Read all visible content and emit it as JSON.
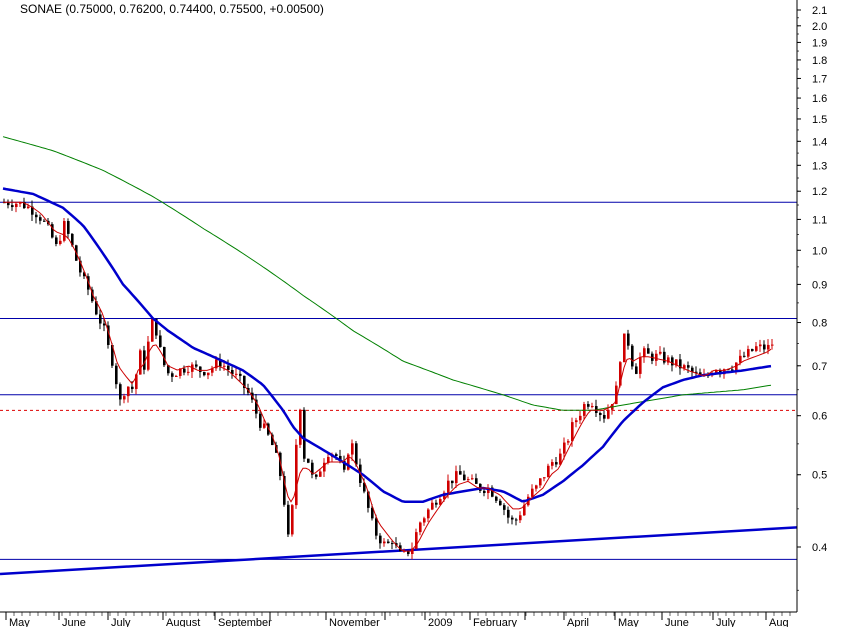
{
  "chart_data": {
    "type": "candlestick",
    "title": "SONAE (0.75000, 0.76200, 0.74400, 0.75500, +0.00500)",
    "y_scale": "log",
    "ylim": [
      0.34,
      2.15
    ],
    "y_ticks": [
      2.1,
      2.0,
      1.9,
      1.8,
      1.7,
      1.6,
      1.5,
      1.4,
      1.3,
      1.2,
      1.1,
      1.0,
      0.9,
      0.8,
      0.7,
      0.6,
      0.5,
      0.4
    ],
    "x_labels": [
      "May",
      "June",
      "July",
      "August",
      "September",
      "",
      "November",
      "",
      "2009",
      "February",
      "",
      "April",
      "May",
      "June",
      "July",
      "Aug"
    ],
    "price": {
      "t": [
        0,
        10,
        20,
        30,
        38,
        45,
        52,
        60,
        65,
        72,
        78,
        85,
        90,
        100,
        105,
        110,
        115,
        122,
        130,
        135,
        140,
        148,
        152,
        158,
        165,
        175,
        185,
        195,
        205,
        215,
        225,
        235,
        245,
        255,
        262,
        270,
        276,
        280,
        284,
        288,
        292,
        296,
        300,
        305,
        310,
        318,
        325,
        332,
        340,
        346,
        352,
        358,
        364,
        370,
        376,
        382,
        388,
        395,
        400,
        408,
        415,
        425,
        435,
        445,
        455,
        465,
        475,
        485,
        490,
        497,
        503,
        510,
        518,
        525,
        532,
        540,
        548,
        556,
        562,
        568,
        574,
        580,
        587,
        594,
        600,
        606,
        612,
        616,
        620,
        625,
        630,
        638,
        646,
        655,
        665,
        675,
        685,
        692,
        698,
        704,
        710,
        716,
        722,
        728,
        734,
        740,
        746,
        752,
        758,
        764,
        770
      ],
      "close": [
        1.16,
        1.16,
        1.15,
        1.13,
        1.1,
        1.06,
        1.01,
        1.08,
        1.04,
        0.97,
        0.92,
        0.88,
        0.84,
        0.78,
        0.73,
        0.7,
        0.62,
        0.66,
        0.65,
        0.73,
        0.7,
        0.8,
        0.78,
        0.71,
        0.68,
        0.69,
        0.7,
        0.69,
        0.69,
        0.71,
        0.69,
        0.67,
        0.64,
        0.59,
        0.57,
        0.54,
        0.5,
        0.46,
        0.41,
        0.45,
        0.55,
        0.62,
        0.53,
        0.52,
        0.48,
        0.52,
        0.54,
        0.53,
        0.5,
        0.56,
        0.52,
        0.48,
        0.45,
        0.42,
        0.41,
        0.4,
        0.41,
        0.39,
        0.39,
        0.4,
        0.43,
        0.45,
        0.47,
        0.49,
        0.5,
        0.49,
        0.48,
        0.48,
        0.47,
        0.46,
        0.44,
        0.43,
        0.45,
        0.47,
        0.48,
        0.5,
        0.52,
        0.53,
        0.55,
        0.58,
        0.6,
        0.62,
        0.63,
        0.61,
        0.6,
        0.62,
        0.65,
        0.72,
        0.76,
        0.75,
        0.68,
        0.73,
        0.72,
        0.72,
        0.71,
        0.7,
        0.69,
        0.68,
        0.67,
        0.68,
        0.7,
        0.69,
        0.7,
        0.7,
        0.71,
        0.72,
        0.73,
        0.74,
        0.74,
        0.74,
        0.755
      ],
      "sma_fast": [
        1.16,
        1.16,
        1.16,
        1.14,
        1.12,
        1.09,
        1.06,
        1.05,
        1.04,
        1.0,
        0.96,
        0.91,
        0.87,
        0.82,
        0.78,
        0.74,
        0.7,
        0.68,
        0.66,
        0.69,
        0.7,
        0.74,
        0.75,
        0.73,
        0.7,
        0.69,
        0.7,
        0.69,
        0.69,
        0.7,
        0.69,
        0.67,
        0.65,
        0.62,
        0.59,
        0.56,
        0.53,
        0.5,
        0.47,
        0.46,
        0.47,
        0.5,
        0.51,
        0.51,
        0.5,
        0.51,
        0.52,
        0.52,
        0.52,
        0.53,
        0.52,
        0.5,
        0.48,
        0.45,
        0.43,
        0.42,
        0.41,
        0.4,
        0.395,
        0.395,
        0.405,
        0.43,
        0.45,
        0.47,
        0.485,
        0.49,
        0.48,
        0.48,
        0.475,
        0.47,
        0.46,
        0.45,
        0.45,
        0.46,
        0.47,
        0.48,
        0.5,
        0.51,
        0.53,
        0.55,
        0.57,
        0.59,
        0.61,
        0.61,
        0.61,
        0.615,
        0.625,
        0.65,
        0.69,
        0.72,
        0.71,
        0.72,
        0.72,
        0.715,
        0.71,
        0.7,
        0.69,
        0.685,
        0.68,
        0.68,
        0.69,
        0.69,
        0.69,
        0.695,
        0.7,
        0.71,
        0.715,
        0.72,
        0.725,
        0.73,
        0.74
      ],
      "sma_mid_t": [
        0,
        30,
        60,
        80,
        100,
        120,
        140,
        150,
        165,
        190,
        220,
        240,
        260,
        280,
        290,
        300,
        320,
        340,
        360,
        380,
        400,
        420,
        440,
        460,
        480,
        500,
        520,
        540,
        560,
        580,
        600,
        620,
        640,
        660,
        680,
        700,
        720,
        740,
        770
      ],
      "sma_mid": [
        1.21,
        1.19,
        1.14,
        1.08,
        0.99,
        0.9,
        0.84,
        0.81,
        0.78,
        0.74,
        0.71,
        0.69,
        0.66,
        0.61,
        0.58,
        0.56,
        0.54,
        0.52,
        0.5,
        0.475,
        0.46,
        0.46,
        0.47,
        0.475,
        0.48,
        0.475,
        0.46,
        0.47,
        0.49,
        0.515,
        0.545,
        0.59,
        0.625,
        0.655,
        0.67,
        0.68,
        0.685,
        0.69,
        0.7
      ],
      "sma_slow_t": [
        0,
        50,
        100,
        150,
        200,
        250,
        300,
        350,
        400,
        450,
        500,
        530,
        560,
        590,
        620,
        650,
        680,
        710,
        740,
        770
      ],
      "sma_slow": [
        1.42,
        1.36,
        1.28,
        1.18,
        1.07,
        0.97,
        0.87,
        0.78,
        0.71,
        0.67,
        0.64,
        0.62,
        0.61,
        0.61,
        0.62,
        0.63,
        0.64,
        0.645,
        0.65,
        0.66
      ]
    },
    "horizontal_lines": [
      1.16,
      0.81,
      0.64,
      0.385
    ],
    "dashed_line": 0.61,
    "trendline": [
      0.368,
      0.425
    ],
    "colors": {
      "bull": "#d00000",
      "bear": "#000000",
      "sma_fast": "#cc0000",
      "sma_mid": "#0000cc",
      "sma_slow": "#008000",
      "hline": "#0000aa",
      "dashed": "#dd0000"
    }
  }
}
